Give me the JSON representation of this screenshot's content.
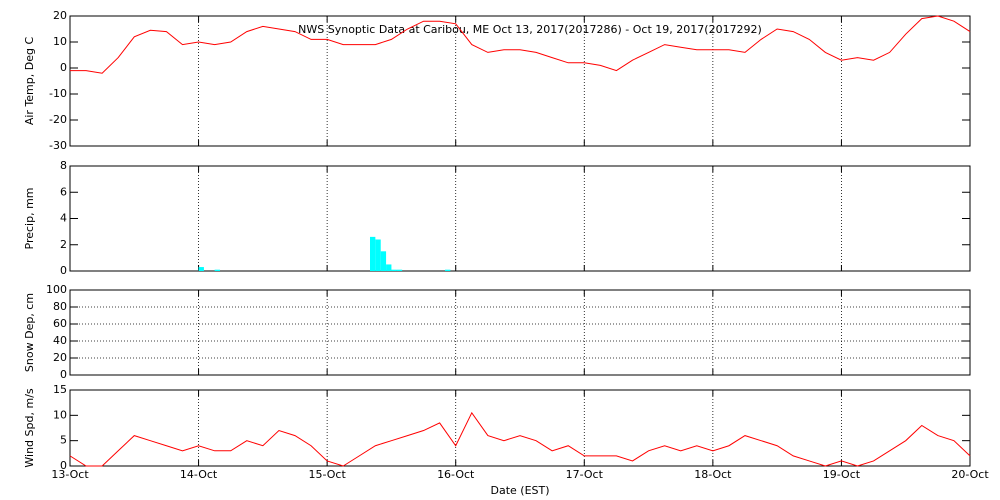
{
  "chart_data": [
    {
      "type": "line",
      "title": "NWS Synoptic Data at Caribou, ME   Oct 13, 2017(2017286) - Oct 19, 2017(2017292)",
      "ylabel": "Air Temp, Deg C",
      "color": "#ff0000",
      "x": [
        0,
        3,
        6,
        9,
        12,
        15,
        18,
        21,
        24,
        27,
        30,
        33,
        36,
        39,
        42,
        45,
        48,
        51,
        54,
        57,
        60,
        63,
        66,
        69,
        72,
        75,
        78,
        81,
        84,
        87,
        90,
        93,
        96,
        99,
        102,
        105,
        108,
        111,
        114,
        117,
        120,
        123,
        126,
        129,
        132,
        135,
        138,
        141,
        144,
        147,
        150,
        153,
        156,
        159,
        162,
        165,
        168
      ],
      "values": [
        -1,
        -1,
        -2,
        4,
        12,
        14.5,
        14,
        9,
        10,
        9,
        10,
        14,
        16,
        15,
        14,
        11,
        11,
        9,
        9,
        9,
        11,
        15,
        18,
        18,
        17,
        9,
        6,
        7,
        7,
        6,
        4,
        2,
        2,
        1,
        -1,
        3,
        6,
        9,
        8,
        7,
        7,
        7,
        6,
        11,
        15,
        14,
        11,
        6,
        3,
        4,
        3,
        6,
        13,
        19,
        20,
        18,
        14
      ],
      "xlim": [
        0,
        168
      ],
      "ylim": [
        -30,
        20
      ],
      "yticks": [
        -30,
        -20,
        -10,
        0,
        10,
        20
      ],
      "ygrid": false
    },
    {
      "type": "bar",
      "ylabel": "Precip, mm",
      "color": "#00ffff",
      "x": [
        24,
        27,
        56,
        57,
        58,
        59,
        60,
        61,
        70
      ],
      "values": [
        0.3,
        0.1,
        2.6,
        2.4,
        1.5,
        0.5,
        0.1,
        0.1,
        0.1
      ],
      "xlim": [
        0,
        168
      ],
      "ylim": [
        0,
        8
      ],
      "yticks": [
        0,
        2,
        4,
        6,
        8
      ],
      "ygrid": false
    },
    {
      "type": "line",
      "ylabel": "Snow Dep, cm",
      "color": "#ff0000",
      "x": [],
      "values": [],
      "xlim": [
        0,
        168
      ],
      "ylim": [
        0,
        100
      ],
      "yticks": [
        0,
        20,
        40,
        60,
        80,
        100
      ],
      "ygrid": true
    },
    {
      "type": "line",
      "ylabel": "Wind Spd, m/s",
      "xlabel": "Date (EST)",
      "color": "#ff0000",
      "x": [
        0,
        3,
        6,
        9,
        12,
        15,
        18,
        21,
        24,
        27,
        30,
        33,
        36,
        39,
        42,
        45,
        48,
        51,
        54,
        57,
        60,
        63,
        66,
        69,
        72,
        75,
        78,
        81,
        84,
        87,
        90,
        93,
        96,
        99,
        102,
        105,
        108,
        111,
        114,
        117,
        120,
        123,
        126,
        129,
        132,
        135,
        138,
        141,
        144,
        147,
        150,
        153,
        156,
        159,
        162,
        165,
        168
      ],
      "values": [
        2,
        0,
        0,
        3,
        6,
        5,
        4,
        3,
        4,
        3,
        3,
        5,
        4,
        7,
        6,
        4,
        1,
        0,
        2,
        4,
        5,
        6,
        7,
        8.5,
        4,
        10.5,
        6,
        5,
        6,
        5,
        3,
        4,
        2,
        2,
        2,
        1,
        3,
        4,
        3,
        4,
        3,
        4,
        6,
        5,
        4,
        2,
        1,
        0,
        1,
        0,
        1,
        3,
        5,
        8,
        6,
        5,
        2
      ],
      "xlim": [
        0,
        168
      ],
      "ylim": [
        0,
        15
      ],
      "yticks": [
        0,
        5,
        10,
        15
      ],
      "ygrid": false,
      "xticks": [
        {
          "value": 0,
          "label": "13-Oct"
        },
        {
          "value": 24,
          "label": "14-Oct"
        },
        {
          "value": 48,
          "label": "15-Oct"
        },
        {
          "value": 72,
          "label": "16-Oct"
        },
        {
          "value": 96,
          "label": "17-Oct"
        },
        {
          "value": 120,
          "label": "18-Oct"
        },
        {
          "value": 144,
          "label": "19-Oct"
        },
        {
          "value": 168,
          "label": "20-Oct"
        }
      ]
    }
  ]
}
